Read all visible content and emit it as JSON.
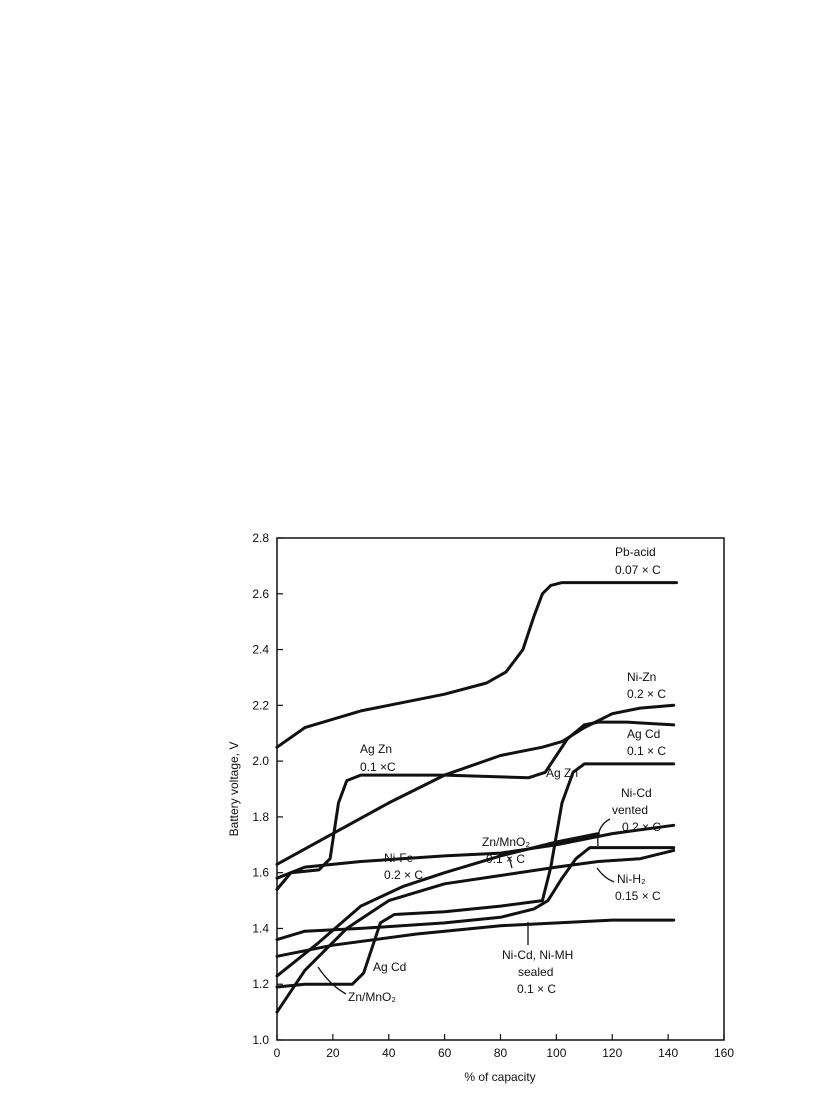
{
  "chart_data": {
    "type": "line",
    "xlabel": "% of capacity",
    "ylabel": "Battery voltage, V",
    "xlim": [
      0,
      160
    ],
    "ylim": [
      1.0,
      2.8
    ],
    "xticks": [
      0,
      20,
      40,
      60,
      80,
      100,
      120,
      140,
      160
    ],
    "yticks": [
      {
        "value": 1.0,
        "label": "1.0"
      },
      {
        "value": 1.2,
        "label": "1.2"
      },
      {
        "value": 1.4,
        "label": "1.4"
      },
      {
        "value": 1.6,
        "label": "1.6"
      },
      {
        "value": 1.8,
        "label": "1.8"
      },
      {
        "value": 2.0,
        "label": "2.0"
      },
      {
        "value": 2.2,
        "label": "2.2"
      },
      {
        "value": 2.4,
        "label": "2.4"
      },
      {
        "value": 2.6,
        "label": "2.6"
      },
      {
        "value": 2.8,
        "label": "2.8"
      }
    ],
    "grid": false,
    "series": [
      {
        "name": "Pb-acid",
        "note": [
          "0.07 × C"
        ],
        "color": "#111111",
        "x": [
          0,
          10,
          30,
          60,
          75,
          82,
          88,
          92,
          95,
          98,
          102,
          110,
          143
        ],
        "values": [
          2.05,
          2.12,
          2.18,
          2.24,
          2.28,
          2.32,
          2.4,
          2.52,
          2.6,
          2.63,
          2.64,
          2.64,
          2.64
        ]
      },
      {
        "name": "Ni-Zn",
        "note": [
          "0.2 × C"
        ],
        "color": "#111111",
        "x": [
          0,
          20,
          40,
          60,
          80,
          95,
          102,
          110,
          120,
          130,
          142
        ],
        "values": [
          1.63,
          1.74,
          1.85,
          1.95,
          2.02,
          2.05,
          2.07,
          2.12,
          2.17,
          2.19,
          2.2
        ]
      },
      {
        "name": "Ag Zn",
        "note": [
          "0.1 ×C"
        ],
        "color": "#111111",
        "x": [
          0,
          5,
          15,
          19,
          22,
          25,
          30,
          60,
          90,
          96,
          100,
          104,
          110,
          115,
          125,
          142
        ],
        "values": [
          1.54,
          1.6,
          1.61,
          1.65,
          1.85,
          1.93,
          1.95,
          1.95,
          1.94,
          1.96,
          2.02,
          2.08,
          2.13,
          2.14,
          2.14,
          2.13
        ]
      },
      {
        "name": "Ag Cd",
        "note": [
          "0.1 × C"
        ],
        "color": "#111111",
        "x": [
          0,
          10,
          27,
          31,
          34,
          37,
          42,
          60,
          80,
          95,
          98,
          102,
          106,
          110,
          142
        ],
        "values": [
          1.19,
          1.2,
          1.2,
          1.24,
          1.33,
          1.42,
          1.45,
          1.46,
          1.48,
          1.5,
          1.62,
          1.85,
          1.96,
          1.99,
          1.99
        ]
      },
      {
        "name": "Ni-Fe",
        "note": [
          "0.2 × C"
        ],
        "color": "#111111",
        "x": [
          0,
          10,
          30,
          60,
          80,
          100,
          120,
          142
        ],
        "values": [
          1.58,
          1.62,
          1.64,
          1.66,
          1.67,
          1.7,
          1.74,
          1.77
        ]
      },
      {
        "name": "Zn/MnO₂",
        "note": [
          "0.1 × C"
        ],
        "color": "#111111",
        "x": [
          0,
          15,
          30,
          45,
          60,
          80,
          100,
          115
        ],
        "values": [
          1.23,
          1.35,
          1.48,
          1.55,
          1.6,
          1.66,
          1.71,
          1.74
        ]
      },
      {
        "name": "Ni-Cd",
        "note": [
          "vented",
          "0.2 × C"
        ],
        "color": "#111111",
        "x": [
          0,
          10,
          30,
          60,
          80,
          92,
          97,
          102,
          107,
          112,
          120,
          142
        ],
        "values": [
          1.36,
          1.39,
          1.4,
          1.42,
          1.44,
          1.47,
          1.5,
          1.58,
          1.65,
          1.69,
          1.69,
          1.69
        ]
      },
      {
        "name": "Ni-H₂",
        "note": [
          "0.15 × C"
        ],
        "color": "#111111",
        "x": [
          0,
          10,
          25,
          40,
          60,
          80,
          100,
          115,
          130,
          142
        ],
        "values": [
          1.1,
          1.25,
          1.4,
          1.5,
          1.56,
          1.59,
          1.62,
          1.64,
          1.65,
          1.68
        ]
      },
      {
        "name": "Ni-Cd, Ni-MH",
        "note": [
          "sealed",
          "0.1 × C"
        ],
        "color": "#111111",
        "x": [
          0,
          20,
          50,
          80,
          120,
          142
        ],
        "values": [
          1.3,
          1.34,
          1.38,
          1.41,
          1.43,
          1.43
        ]
      }
    ],
    "annotations": [
      "Ag Zn",
      "Ag Cd",
      "Zn/MnO₂"
    ]
  }
}
